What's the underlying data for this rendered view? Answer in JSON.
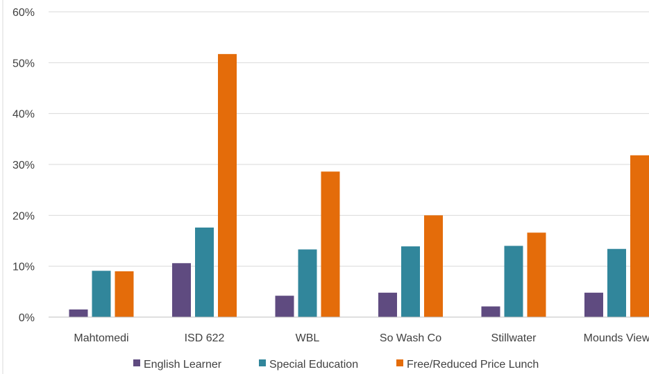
{
  "chart_data": {
    "type": "bar",
    "categories": [
      "Mahtomedi",
      "ISD 622",
      "WBL",
      "So Wash Co",
      "Stillwater",
      "Mounds View"
    ],
    "series": [
      {
        "name": "English Learner",
        "color": "#5f4b80",
        "values": [
          1.5,
          10.6,
          4.2,
          4.8,
          2.1,
          4.8
        ]
      },
      {
        "name": "Special Education",
        "color": "#31869b",
        "values": [
          9.1,
          17.6,
          13.3,
          13.9,
          14.0,
          13.4
        ]
      },
      {
        "name": "Free/Reduced Price Lunch",
        "color": "#e46c0a",
        "values": [
          9.0,
          51.7,
          28.6,
          20.0,
          16.6,
          31.8
        ]
      }
    ],
    "ylim": [
      0,
      60
    ],
    "yticks": [
      "0%",
      "10%",
      "20%",
      "30%",
      "40%",
      "50%",
      "60%"
    ],
    "grid": true,
    "legend_position": "bottom"
  }
}
